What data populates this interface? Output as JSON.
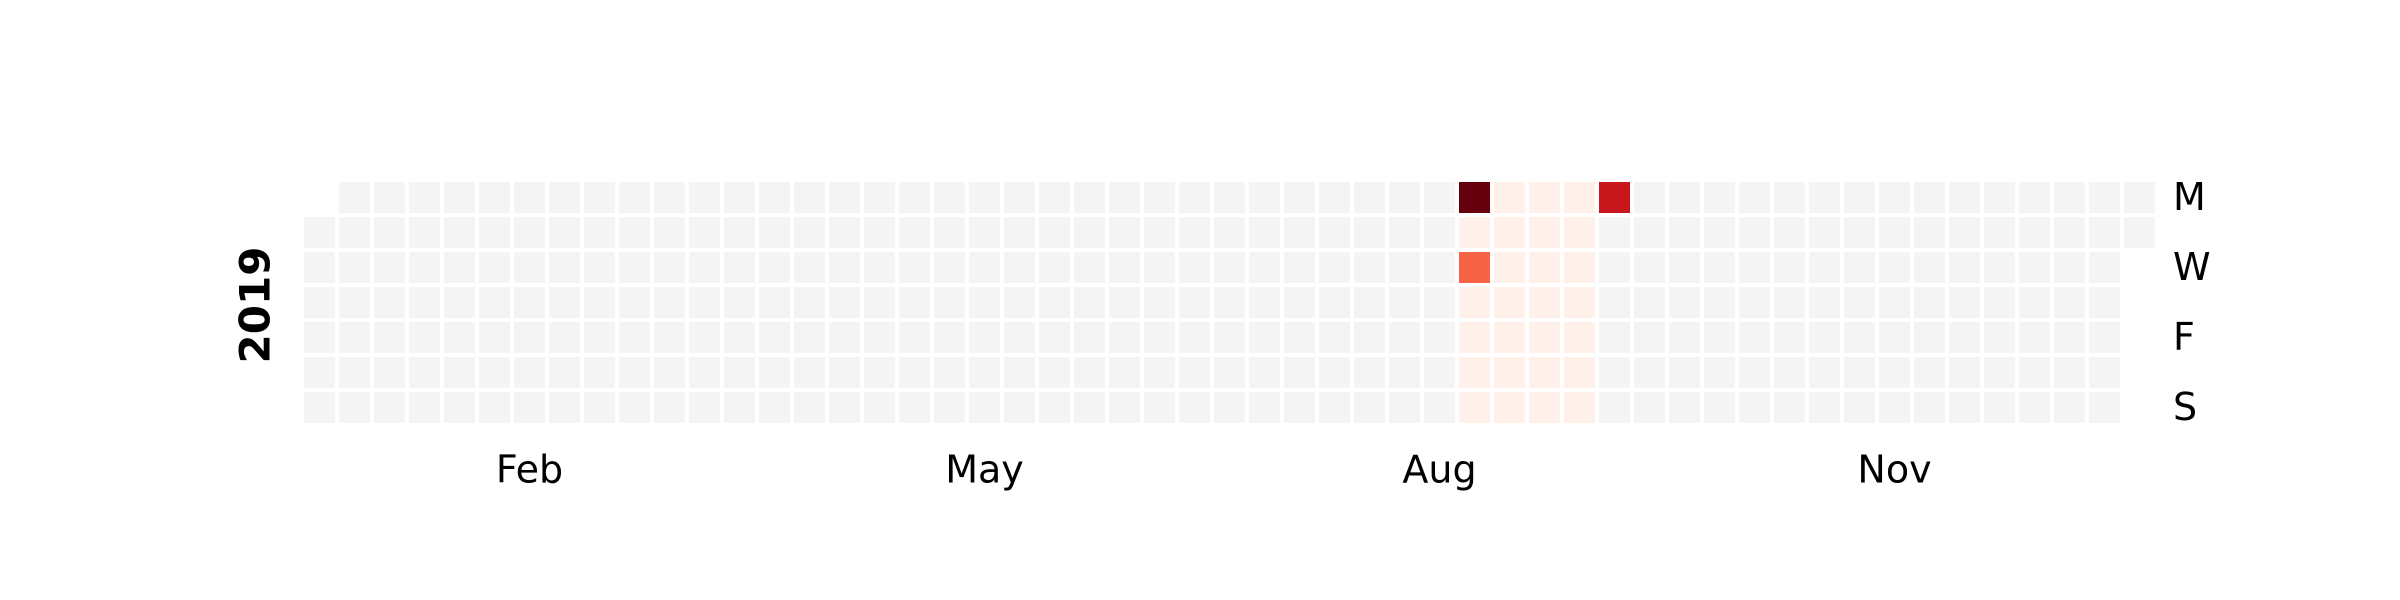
{
  "chart_data": {
    "type": "heatmap",
    "subtype": "calendar",
    "year_label": "2019",
    "x_tick_labels": [
      "Feb",
      "May",
      "Aug",
      "Nov"
    ],
    "x_tick_weeks": [
      6,
      19,
      32,
      45
    ],
    "y_tick_labels": [
      "M",
      "W",
      "F",
      "S"
    ],
    "y_tick_days": [
      0,
      2,
      4,
      6
    ],
    "first_week_start_day": 1,
    "weeks": 53,
    "last_week_days": 2,
    "empty_color": "#f4f4f4",
    "colormap": "Reds",
    "color_stops": [
      "#fff5f0",
      "#fcbba1",
      "#fb6a4a",
      "#cb181d",
      "#67000d"
    ],
    "vmin": 0,
    "vmax": 5,
    "legend": false,
    "grid": false,
    "values": [
      {
        "week": 33,
        "day": 0,
        "value": 5
      },
      {
        "week": 33,
        "day": 1,
        "value": 0.1
      },
      {
        "week": 33,
        "day": 2,
        "value": 2.6
      },
      {
        "week": 33,
        "day": 3,
        "value": 0.1
      },
      {
        "week": 33,
        "day": 4,
        "value": 0.1
      },
      {
        "week": 33,
        "day": 5,
        "value": 0.1
      },
      {
        "week": 33,
        "day": 6,
        "value": 0.1
      },
      {
        "week": 34,
        "day": 0,
        "value": 0.1
      },
      {
        "week": 34,
        "day": 1,
        "value": 0.1
      },
      {
        "week": 34,
        "day": 2,
        "value": 0.1
      },
      {
        "week": 34,
        "day": 3,
        "value": 0.1
      },
      {
        "week": 34,
        "day": 4,
        "value": 0.1
      },
      {
        "week": 34,
        "day": 5,
        "value": 0.1
      },
      {
        "week": 34,
        "day": 6,
        "value": 0.1
      },
      {
        "week": 35,
        "day": 0,
        "value": 0.1
      },
      {
        "week": 35,
        "day": 1,
        "value": 0.1
      },
      {
        "week": 35,
        "day": 2,
        "value": 0.1
      },
      {
        "week": 35,
        "day": 3,
        "value": 0.1
      },
      {
        "week": 35,
        "day": 4,
        "value": 0.1
      },
      {
        "week": 35,
        "day": 5,
        "value": 0.1
      },
      {
        "week": 35,
        "day": 6,
        "value": 0.1
      },
      {
        "week": 36,
        "day": 0,
        "value": 0.1
      },
      {
        "week": 36,
        "day": 1,
        "value": 0.1
      },
      {
        "week": 36,
        "day": 2,
        "value": 0.1
      },
      {
        "week": 36,
        "day": 3,
        "value": 0.1
      },
      {
        "week": 36,
        "day": 4,
        "value": 0.1
      },
      {
        "week": 36,
        "day": 5,
        "value": 0.1
      },
      {
        "week": 36,
        "day": 6,
        "value": 0.1
      },
      {
        "week": 37,
        "day": 0,
        "value": 3.8
      }
    ]
  }
}
